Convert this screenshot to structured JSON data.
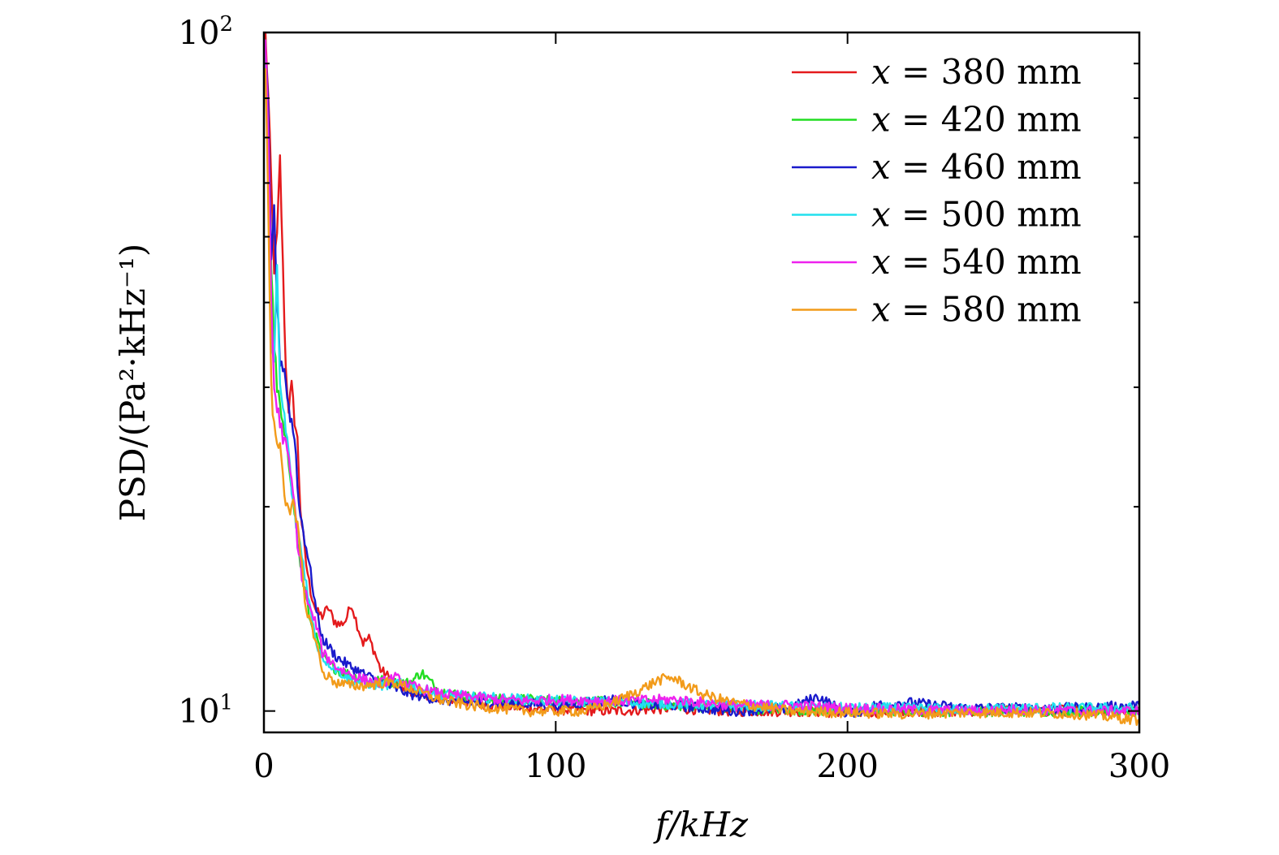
{
  "chart_data": {
    "type": "line",
    "xlabel": "f/kHz",
    "ylabel": "PSD/(Pa²·kHz⁻¹)",
    "xlim": [
      0,
      300
    ],
    "ylim": [
      9.3,
      100
    ],
    "yscale": "log",
    "xticks": [
      "0",
      "100",
      "200",
      "300"
    ],
    "yticks": [
      {
        "base": "10",
        "exp": "1"
      },
      {
        "base": "10",
        "exp": "2"
      }
    ],
    "legend_position": "top-right",
    "series": [
      {
        "name": "x = 380 mm",
        "label_var": "x",
        "label_rest": " = 380 mm",
        "color": "#e41a1c",
        "points": [
          [
            0.5,
            100
          ],
          [
            1.5,
            80
          ],
          [
            2.5,
            60
          ],
          [
            3.5,
            45
          ],
          [
            4.5,
            50
          ],
          [
            5.5,
            65
          ],
          [
            6.5,
            45
          ],
          [
            7.5,
            32
          ],
          [
            8.5,
            28
          ],
          [
            9.5,
            30
          ],
          [
            10.5,
            27
          ],
          [
            11.5,
            25
          ],
          [
            12.5,
            20
          ],
          [
            14,
            17
          ],
          [
            16,
            15
          ],
          [
            18,
            14
          ],
          [
            20,
            13.8
          ],
          [
            22,
            14.2
          ],
          [
            24,
            13.6
          ],
          [
            26,
            13.4
          ],
          [
            28,
            13.6
          ],
          [
            30,
            14.4
          ],
          [
            32,
            13.4
          ],
          [
            34,
            12.6
          ],
          [
            36,
            12.8
          ],
          [
            38,
            12.2
          ],
          [
            40,
            11.5
          ],
          [
            45,
            11.0
          ],
          [
            50,
            10.7
          ],
          [
            60,
            10.5
          ],
          [
            70,
            10.3
          ],
          [
            80,
            10.2
          ],
          [
            90,
            10.1
          ],
          [
            100,
            10.05
          ],
          [
            120,
            10.0
          ],
          [
            140,
            10.1
          ],
          [
            160,
            10.0
          ],
          [
            180,
            10.0
          ],
          [
            200,
            9.95
          ],
          [
            220,
            10.0
          ],
          [
            240,
            10.0
          ],
          [
            260,
            10.05
          ],
          [
            280,
            10.0
          ],
          [
            300,
            10.0
          ]
        ]
      },
      {
        "name": "x = 420 mm",
        "label_var": "x",
        "label_rest": " = 420 mm",
        "color": "#22dd22",
        "points": [
          [
            0.5,
            95
          ],
          [
            1.5,
            70
          ],
          [
            2.5,
            45
          ],
          [
            3.5,
            35
          ],
          [
            4.5,
            30
          ],
          [
            6,
            27
          ],
          [
            8,
            24
          ],
          [
            10,
            21
          ],
          [
            12,
            17
          ],
          [
            14,
            15
          ],
          [
            16,
            13.5
          ],
          [
            18,
            12.8
          ],
          [
            20,
            12.0
          ],
          [
            25,
            11.5
          ],
          [
            30,
            11.3
          ],
          [
            35,
            11.0
          ],
          [
            40,
            11.1
          ],
          [
            45,
            11.0
          ],
          [
            50,
            11.0
          ],
          [
            54,
            11.4
          ],
          [
            60,
            10.7
          ],
          [
            70,
            10.5
          ],
          [
            80,
            10.4
          ],
          [
            90,
            10.4
          ],
          [
            100,
            10.35
          ],
          [
            120,
            10.3
          ],
          [
            140,
            10.2
          ],
          [
            160,
            10.1
          ],
          [
            180,
            10.05
          ],
          [
            200,
            10.0
          ],
          [
            220,
            10.0
          ],
          [
            240,
            10.0
          ],
          [
            260,
            10.0
          ],
          [
            280,
            10.0
          ],
          [
            300,
            10.0
          ]
        ]
      },
      {
        "name": "x = 460 mm",
        "label_var": "x",
        "label_rest": " = 460 mm",
        "color": "#1a1acc",
        "points": [
          [
            0.5,
            95
          ],
          [
            1.5,
            75
          ],
          [
            2.5,
            45
          ],
          [
            3.5,
            55
          ],
          [
            4.5,
            40
          ],
          [
            5.5,
            33
          ],
          [
            7,
            32
          ],
          [
            8.5,
            28
          ],
          [
            10,
            26
          ],
          [
            11,
            24
          ],
          [
            12,
            20
          ],
          [
            14,
            18
          ],
          [
            16,
            16
          ],
          [
            18,
            14
          ],
          [
            20,
            12.8
          ],
          [
            25,
            12.0
          ],
          [
            30,
            11.6
          ],
          [
            35,
            11.3
          ],
          [
            40,
            11.0
          ],
          [
            45,
            10.8
          ],
          [
            50,
            10.6
          ],
          [
            60,
            10.4
          ],
          [
            70,
            10.3
          ],
          [
            80,
            10.3
          ],
          [
            90,
            10.25
          ],
          [
            100,
            10.2
          ],
          [
            110,
            10.3
          ],
          [
            120,
            10.4
          ],
          [
            130,
            10.2
          ],
          [
            140,
            10.2
          ],
          [
            160,
            10.0
          ],
          [
            180,
            10.1
          ],
          [
            190,
            10.5
          ],
          [
            200,
            9.9
          ],
          [
            210,
            10.2
          ],
          [
            220,
            10.3
          ],
          [
            240,
            10.1
          ],
          [
            260,
            10.1
          ],
          [
            280,
            10.1
          ],
          [
            300,
            10.2
          ]
        ]
      },
      {
        "name": "x = 500 mm",
        "label_var": "x",
        "label_rest": " = 500 mm",
        "color": "#22e0ee",
        "points": [
          [
            0.5,
            95
          ],
          [
            1.5,
            65
          ],
          [
            2.5,
            35
          ],
          [
            3.5,
            32
          ],
          [
            4.5,
            45
          ],
          [
            5.5,
            30
          ],
          [
            7,
            27
          ],
          [
            8.5,
            24
          ],
          [
            10,
            20
          ],
          [
            12,
            18
          ],
          [
            14,
            16
          ],
          [
            16,
            14
          ],
          [
            18,
            12.6
          ],
          [
            20,
            12.0
          ],
          [
            25,
            11.5
          ],
          [
            30,
            11.1
          ],
          [
            35,
            11.0
          ],
          [
            40,
            10.9
          ],
          [
            45,
            11.0
          ],
          [
            50,
            10.9
          ],
          [
            60,
            10.6
          ],
          [
            70,
            10.5
          ],
          [
            80,
            10.45
          ],
          [
            90,
            10.4
          ],
          [
            100,
            10.35
          ],
          [
            120,
            10.3
          ],
          [
            140,
            10.25
          ],
          [
            160,
            10.2
          ],
          [
            180,
            10.15
          ],
          [
            200,
            10.1
          ],
          [
            220,
            10.1
          ],
          [
            240,
            10.05
          ],
          [
            260,
            10.1
          ],
          [
            280,
            10.1
          ],
          [
            300,
            10.1
          ]
        ]
      },
      {
        "name": "x = 540 mm",
        "label_var": "x",
        "label_rest": " = 540 mm",
        "color": "#ee22ee",
        "points": [
          [
            0.5,
            95
          ],
          [
            1.5,
            70
          ],
          [
            2.5,
            40
          ],
          [
            3.5,
            30
          ],
          [
            4.5,
            28
          ],
          [
            6,
            26
          ],
          [
            8,
            24
          ],
          [
            10,
            21
          ],
          [
            12,
            17
          ],
          [
            14,
            15
          ],
          [
            16,
            14
          ],
          [
            18,
            13.4
          ],
          [
            20,
            12.2
          ],
          [
            25,
            11.6
          ],
          [
            30,
            11.3
          ],
          [
            35,
            11.1
          ],
          [
            40,
            11.0
          ],
          [
            45,
            11.2
          ],
          [
            50,
            10.9
          ],
          [
            60,
            10.6
          ],
          [
            70,
            10.5
          ],
          [
            80,
            10.4
          ],
          [
            90,
            10.35
          ],
          [
            100,
            10.4
          ],
          [
            120,
            10.35
          ],
          [
            140,
            10.4
          ],
          [
            160,
            10.2
          ],
          [
            180,
            10.2
          ],
          [
            200,
            10.1
          ],
          [
            220,
            10.05
          ],
          [
            240,
            10.0
          ],
          [
            260,
            10.05
          ],
          [
            280,
            10.0
          ],
          [
            300,
            10.0
          ]
        ]
      },
      {
        "name": "x = 580 mm",
        "label_var": "x",
        "label_rest": " = 580 mm",
        "color": "#f29b1a",
        "points": [
          [
            0.5,
            90
          ],
          [
            1.5,
            55
          ],
          [
            2.5,
            30
          ],
          [
            3.5,
            26
          ],
          [
            4.5,
            25
          ],
          [
            6,
            24
          ],
          [
            7,
            21
          ],
          [
            8.5,
            20
          ],
          [
            10,
            20
          ],
          [
            12,
            18
          ],
          [
            14,
            14.5
          ],
          [
            16,
            13.5
          ],
          [
            18,
            12.6
          ],
          [
            20,
            11.4
          ],
          [
            25,
            11.0
          ],
          [
            30,
            10.9
          ],
          [
            35,
            10.9
          ],
          [
            40,
            11.0
          ],
          [
            45,
            11.0
          ],
          [
            50,
            10.8
          ],
          [
            60,
            10.4
          ],
          [
            70,
            10.2
          ],
          [
            80,
            10.1
          ],
          [
            90,
            10.0
          ],
          [
            100,
            10.0
          ],
          [
            110,
            10.0
          ],
          [
            120,
            10.3
          ],
          [
            130,
            10.8
          ],
          [
            135,
            11.1
          ],
          [
            140,
            11.2
          ],
          [
            145,
            10.9
          ],
          [
            150,
            10.6
          ],
          [
            160,
            10.3
          ],
          [
            180,
            10.0
          ],
          [
            200,
            9.95
          ],
          [
            220,
            9.9
          ],
          [
            240,
            9.95
          ],
          [
            260,
            9.95
          ],
          [
            280,
            9.9
          ],
          [
            300,
            9.7
          ]
        ]
      }
    ]
  }
}
